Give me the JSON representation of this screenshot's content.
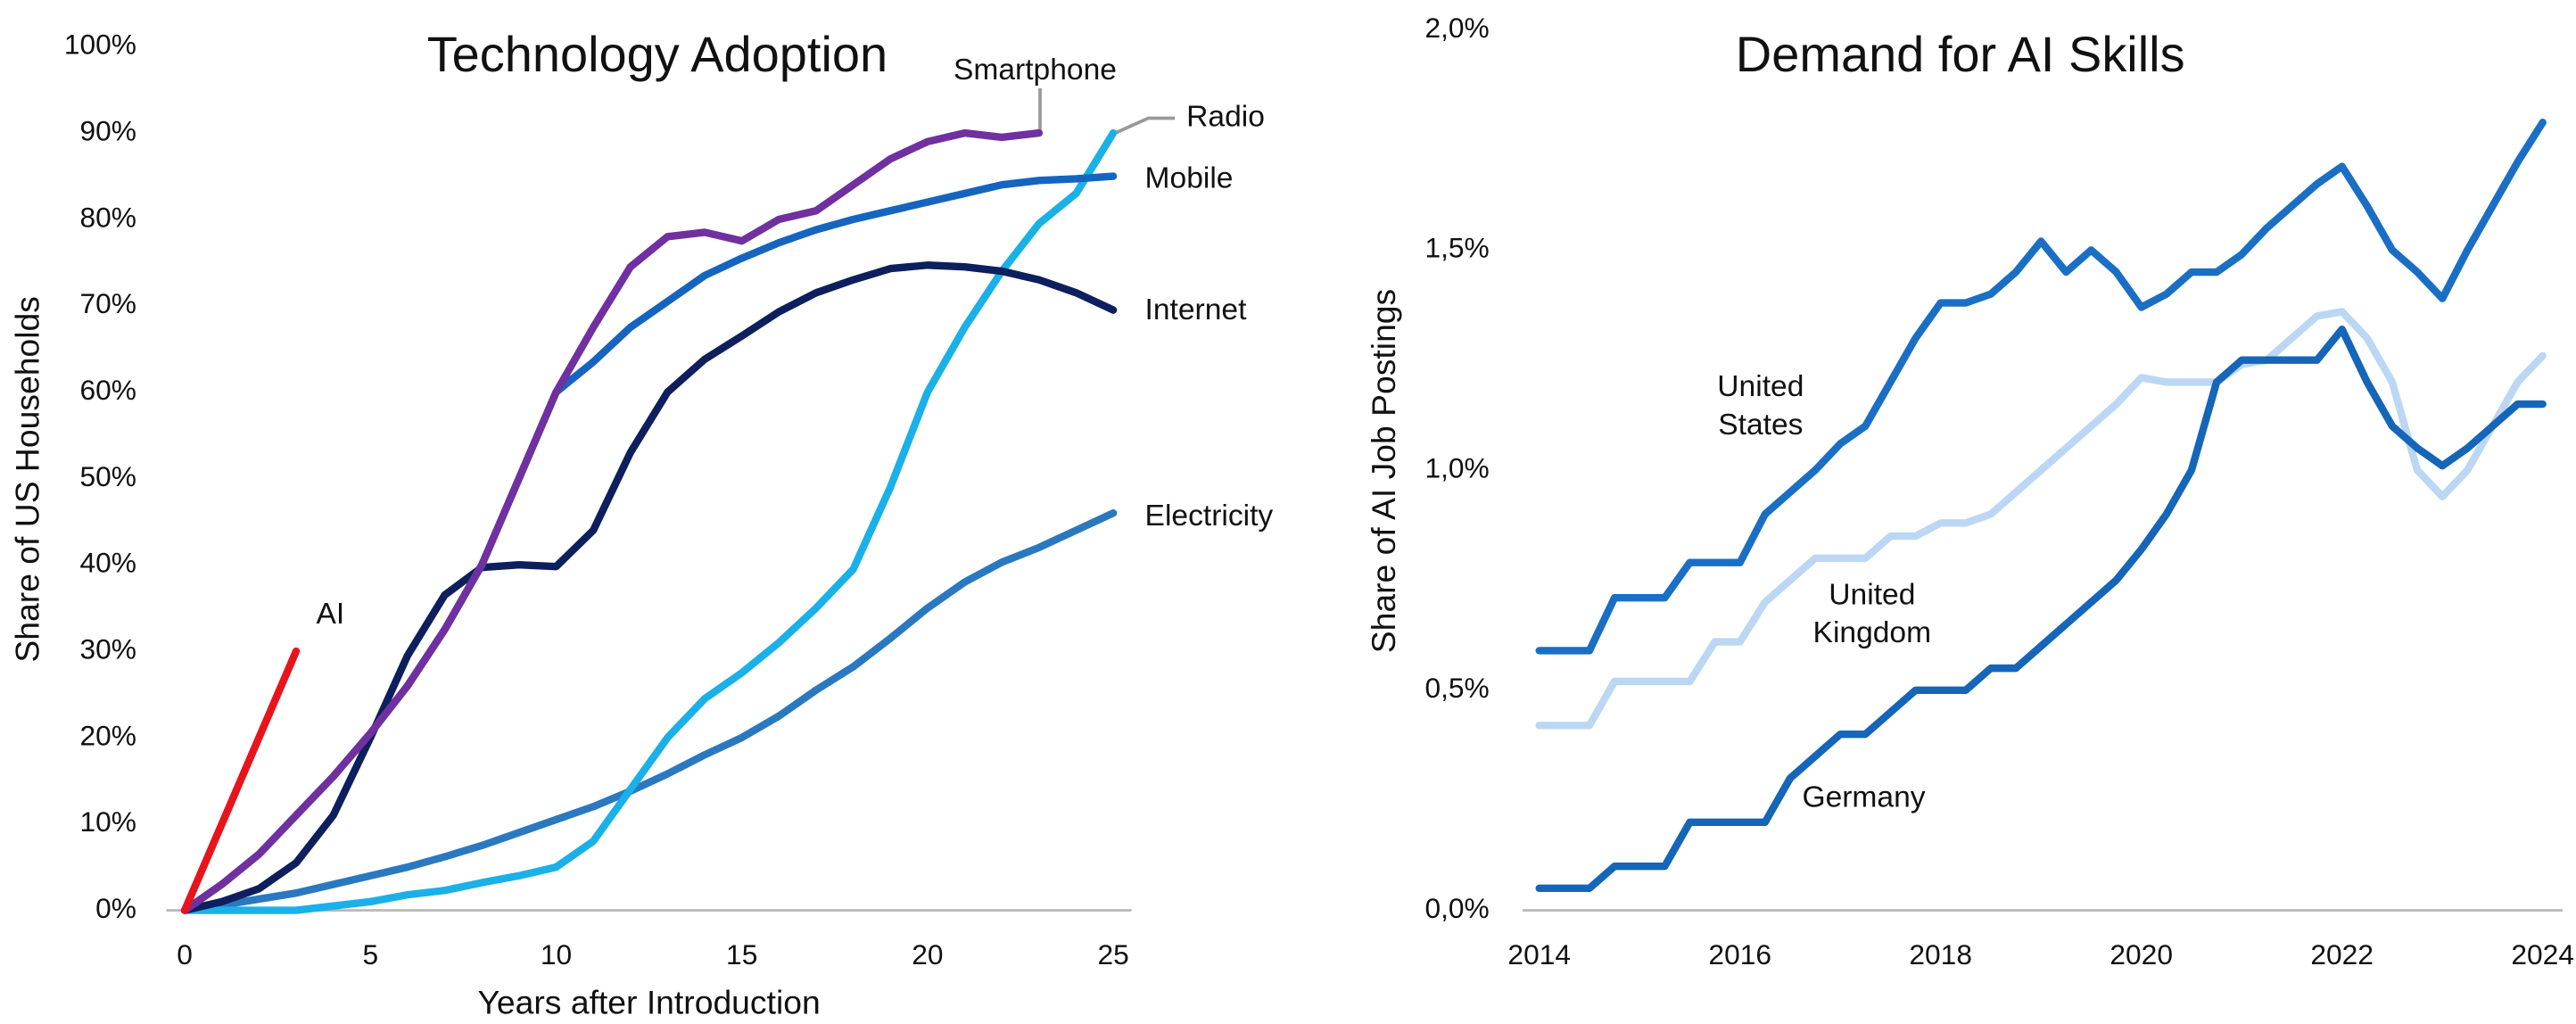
{
  "chart_data": [
    {
      "type": "line",
      "title": "Technology Adoption",
      "x_label": "Years after Introduction",
      "y_label": "Share of US Households",
      "x": [
        0,
        1,
        2,
        3,
        4,
        5,
        6,
        7,
        8,
        9,
        10,
        11,
        12,
        13,
        14,
        15,
        16,
        17,
        18,
        19,
        20,
        21,
        22,
        23,
        24,
        25
      ],
      "xlim": [
        0,
        25
      ],
      "xticks": [
        0,
        5,
        10,
        15,
        20,
        25
      ],
      "ylim": [
        0,
        100
      ],
      "yticks": [
        {
          "value": 0,
          "label": "0%"
        },
        {
          "value": 10,
          "label": "10%"
        },
        {
          "value": 20,
          "label": "20%"
        },
        {
          "value": 30,
          "label": "30%"
        },
        {
          "value": 40,
          "label": "40%"
        },
        {
          "value": 50,
          "label": "50%"
        },
        {
          "value": 60,
          "label": "60%"
        },
        {
          "value": 70,
          "label": "70%"
        },
        {
          "value": 80,
          "label": "80%"
        },
        {
          "value": 90,
          "label": "90%"
        },
        {
          "value": 100,
          "label": "100%"
        }
      ],
      "grid": false,
      "series": [
        {
          "name": "Electricity",
          "color": "#2a79c0",
          "values": [
            0,
            0.6,
            1.3,
            2,
            3,
            4,
            5,
            6.2,
            7.5,
            9,
            10.5,
            12,
            13.8,
            15.8,
            18,
            20,
            22.5,
            25.5,
            28.2,
            31.5,
            35,
            38,
            40.3,
            42,
            44,
            46
          ]
        },
        {
          "name": "Radio",
          "color": "#1ab0e8",
          "values": [
            0,
            0,
            0,
            0,
            0.5,
            1,
            1.8,
            2.3,
            3.2,
            4,
            5,
            8,
            14,
            20,
            24.5,
            27.5,
            31,
            35,
            39.5,
            49,
            60,
            67.5,
            74,
            79.5,
            83,
            90
          ]
        },
        {
          "name": "Internet",
          "color": "#0d1f5c",
          "values": [
            0,
            1,
            2.5,
            5.5,
            11,
            20,
            29.5,
            36.5,
            39.7,
            40,
            39.8,
            44,
            53,
            60,
            63.8,
            66.5,
            69.3,
            71.5,
            73,
            74.3,
            74.7,
            74.5,
            74,
            73,
            71.5,
            69.5
          ]
        },
        {
          "name": "Mobile",
          "color": "#1565c0",
          "values": [
            0,
            3,
            6.5,
            11,
            15.5,
            20.5,
            26,
            32.5,
            40,
            50,
            60,
            63.5,
            67.5,
            70.5,
            73.5,
            75.5,
            77.3,
            78.8,
            80,
            81,
            82,
            83,
            84,
            84.5,
            84.7,
            85
          ]
        },
        {
          "name": "Smartphone",
          "color": "#7030a0",
          "values": [
            0,
            3,
            6.5,
            11,
            15.5,
            20.5,
            26,
            32.5,
            40,
            50,
            60,
            67.5,
            74.5,
            78,
            78.5,
            77.5,
            80,
            81,
            84,
            87,
            89,
            90,
            89.5,
            90,
            null,
            null
          ]
        },
        {
          "name": "AI",
          "color": "#e8141b",
          "values": [
            0,
            10,
            20,
            30,
            null,
            null,
            null,
            null,
            null,
            null,
            null,
            null,
            null,
            null,
            null,
            null,
            null,
            null,
            null,
            null,
            null,
            null,
            null,
            null,
            null,
            null
          ]
        }
      ]
    },
    {
      "type": "line",
      "title": "Demand for AI Skills",
      "y_label": "Share of AI Job Postings",
      "x": [
        2014,
        2014.25,
        2014.5,
        2014.75,
        2015,
        2015.25,
        2015.5,
        2015.75,
        2016,
        2016.25,
        2016.5,
        2016.75,
        2017,
        2017.25,
        2017.5,
        2017.75,
        2018,
        2018.25,
        2018.5,
        2018.75,
        2019,
        2019.25,
        2019.5,
        2019.75,
        2020,
        2020.25,
        2020.5,
        2020.75,
        2021,
        2021.25,
        2021.5,
        2021.75,
        2022,
        2022.25,
        2022.5,
        2022.75,
        2023,
        2023.25,
        2023.5,
        2023.75,
        2024
      ],
      "xlim": [
        2014,
        2024
      ],
      "xticks": [
        2014,
        2016,
        2018,
        2020,
        2022,
        2024
      ],
      "ylim": [
        0,
        2
      ],
      "yticks": [
        {
          "value": 0,
          "label": "0,0%"
        },
        {
          "value": 0.5,
          "label": "0,5%"
        },
        {
          "value": 1,
          "label": "1,0%"
        },
        {
          "value": 1.5,
          "label": "1,5%"
        },
        {
          "value": 2,
          "label": "2,0%"
        }
      ],
      "grid": false,
      "series": [
        {
          "name": "United Kingdom",
          "color": "#bcd7f3",
          "values": [
            0.42,
            0.42,
            0.42,
            0.52,
            0.52,
            0.52,
            0.52,
            0.61,
            0.61,
            0.7,
            0.75,
            0.8,
            0.8,
            0.8,
            0.85,
            0.85,
            0.88,
            0.88,
            0.9,
            0.95,
            1.0,
            1.05,
            1.1,
            1.15,
            1.21,
            1.2,
            1.2,
            1.2,
            1.24,
            1.25,
            1.3,
            1.35,
            1.36,
            1.3,
            1.2,
            1.0,
            0.94,
            1.0,
            1.1,
            1.2,
            1.26
          ]
        },
        {
          "name": "Germany",
          "color": "#1565b8",
          "values": [
            0.05,
            0.05,
            0.05,
            0.1,
            0.1,
            0.1,
            0.2,
            0.2,
            0.2,
            0.2,
            0.3,
            0.35,
            0.4,
            0.4,
            0.45,
            0.5,
            0.5,
            0.5,
            0.55,
            0.55,
            0.6,
            0.65,
            0.7,
            0.75,
            0.82,
            0.9,
            1.0,
            1.2,
            1.25,
            1.25,
            1.25,
            1.25,
            1.32,
            1.2,
            1.1,
            1.05,
            1.01,
            1.05,
            1.1,
            1.15,
            1.15
          ]
        },
        {
          "name": "United States",
          "color": "#1a6fc4",
          "values": [
            0.59,
            0.59,
            0.59,
            0.71,
            0.71,
            0.71,
            0.79,
            0.79,
            0.79,
            0.9,
            0.95,
            1.0,
            1.06,
            1.1,
            1.2,
            1.3,
            1.38,
            1.38,
            1.4,
            1.45,
            1.52,
            1.45,
            1.5,
            1.45,
            1.37,
            1.4,
            1.45,
            1.45,
            1.49,
            1.55,
            1.6,
            1.65,
            1.69,
            1.6,
            1.5,
            1.45,
            1.39,
            1.5,
            1.6,
            1.7,
            1.79
          ]
        }
      ]
    }
  ]
}
